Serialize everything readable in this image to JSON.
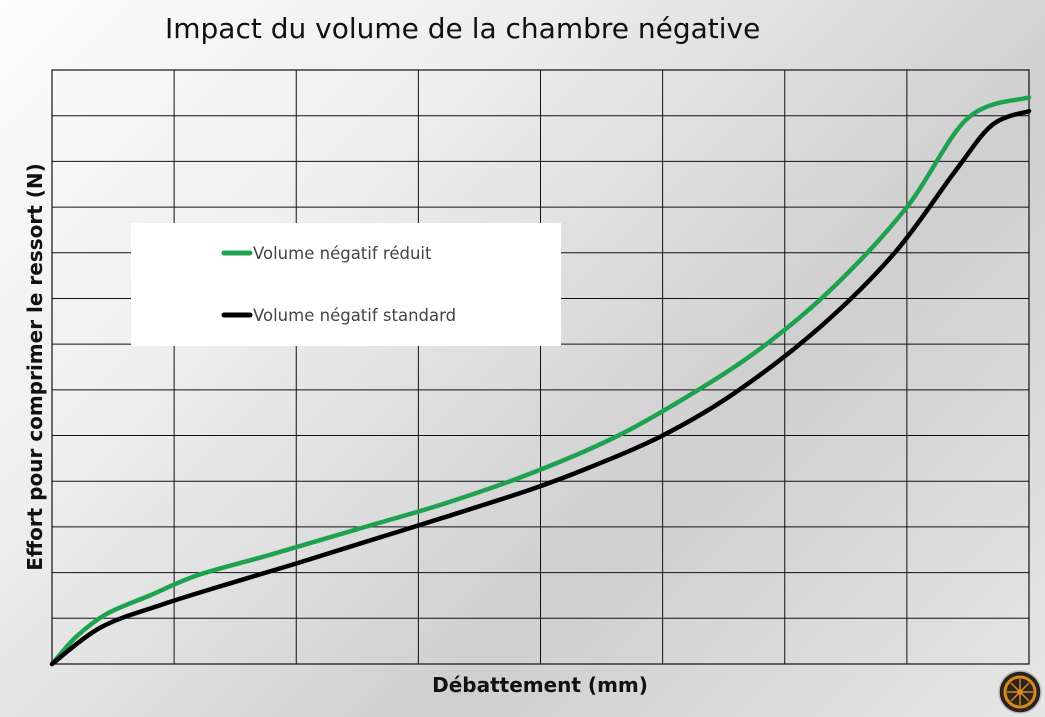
{
  "chart_data": {
    "type": "line",
    "title": "Impact du volume de la chambre négative",
    "xlabel": "Débattement (mm)",
    "ylabel": "Effort pour comprimer le ressort (N)",
    "xlim": [
      0,
      8
    ],
    "ylim": [
      0,
      13
    ],
    "x_gridlines": 8,
    "y_gridlines": 13,
    "grid": true,
    "tick_labels": false,
    "legend": {
      "placement": "upper-left"
    },
    "series": [
      {
        "name": "Volume négatif réduit",
        "color": "#1fa24f",
        "points": [
          [
            0,
            0
          ],
          [
            0.2,
            0.6
          ],
          [
            0.45,
            1.1
          ],
          [
            0.8,
            1.5
          ],
          [
            1.2,
            1.95
          ],
          [
            1.8,
            2.4
          ],
          [
            2.5,
            2.95
          ],
          [
            3.2,
            3.5
          ],
          [
            3.9,
            4.15
          ],
          [
            4.6,
            4.95
          ],
          [
            5.2,
            5.85
          ],
          [
            5.8,
            6.9
          ],
          [
            6.4,
            8.25
          ],
          [
            7.0,
            10.0
          ],
          [
            7.5,
            11.95
          ],
          [
            8.0,
            12.4
          ]
        ]
      },
      {
        "name": "Volume négatif standard",
        "color": "#000000",
        "points": [
          [
            0,
            0
          ],
          [
            0.4,
            0.8
          ],
          [
            0.9,
            1.3
          ],
          [
            1.5,
            1.8
          ],
          [
            2.0,
            2.2
          ],
          [
            2.6,
            2.7
          ],
          [
            3.2,
            3.2
          ],
          [
            3.9,
            3.8
          ],
          [
            4.4,
            4.3
          ],
          [
            5.0,
            5.0
          ],
          [
            5.6,
            5.95
          ],
          [
            6.3,
            7.4
          ],
          [
            6.9,
            9.0
          ],
          [
            7.4,
            10.8
          ],
          [
            7.7,
            11.8
          ],
          [
            8.0,
            12.1
          ]
        ]
      }
    ]
  },
  "logo": {
    "icon": "wheel-logo-icon"
  }
}
